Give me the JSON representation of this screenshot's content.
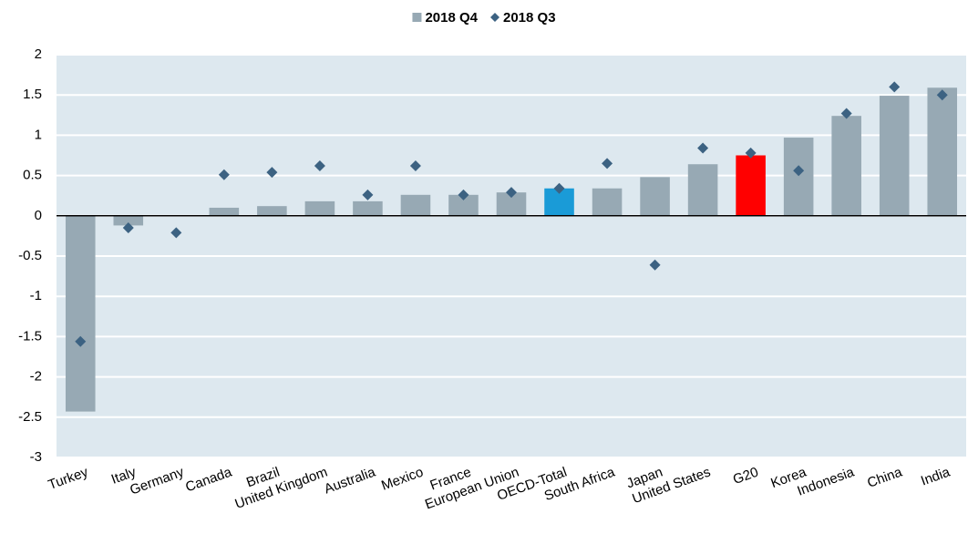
{
  "chart_data": {
    "type": "bar",
    "categories": [
      "Turkey",
      "Italy",
      "Germany",
      "Canada",
      "Brazil",
      "United Kingdom",
      "Australia",
      "Mexico",
      "France",
      "European Union",
      "OECD-Total",
      "South Africa",
      "Japan",
      "United States",
      "G20",
      "Korea",
      "Indonesia",
      "China",
      "India"
    ],
    "series": [
      {
        "name": "2018 Q4",
        "type": "bar",
        "color": "#97a9b4",
        "colors": [
          "#97a9b4",
          "#97a9b4",
          "#97a9b4",
          "#97a9b4",
          "#97a9b4",
          "#97a9b4",
          "#97a9b4",
          "#97a9b4",
          "#97a9b4",
          "#97a9b4",
          "#1a9bd7",
          "#97a9b4",
          "#97a9b4",
          "#97a9b4",
          "#ff0000",
          "#97a9b4",
          "#97a9b4",
          "#97a9b4",
          "#97a9b4"
        ],
        "values": [
          -2.43,
          -0.12,
          0,
          0.1,
          0.12,
          0.18,
          0.18,
          0.26,
          0.26,
          0.29,
          0.34,
          0.34,
          0.48,
          0.64,
          0.75,
          0.97,
          1.24,
          1.49,
          1.59
        ]
      },
      {
        "name": "2018 Q3",
        "type": "marker",
        "color": "#3c6282",
        "values": [
          -1.56,
          -0.15,
          -0.21,
          0.51,
          0.54,
          0.62,
          0.26,
          0.62,
          0.26,
          0.29,
          0.34,
          0.65,
          -0.61,
          0.84,
          0.78,
          0.56,
          1.27,
          1.6,
          1.5
        ]
      }
    ],
    "ylim": [
      -3,
      2
    ],
    "yticks": [
      2,
      1.5,
      1,
      0.5,
      0,
      -0.5,
      -1,
      -1.5,
      -2,
      -2.5,
      -3
    ],
    "grid": true,
    "plot_background": "#dde8ef",
    "legend": "top"
  }
}
